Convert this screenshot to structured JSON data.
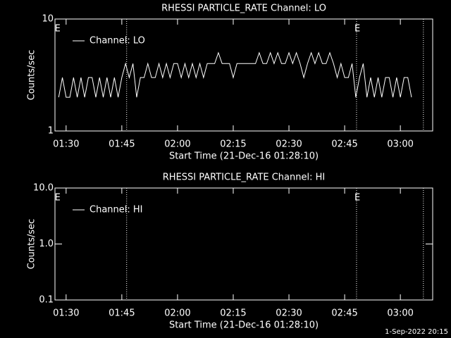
{
  "chart_data": [
    {
      "type": "line",
      "title": "RHESSI PARTICLE_RATE Channel: LO",
      "xlabel": "Start Time (21-Dec-16 01:28:10)",
      "ylabel": "Counts/sec",
      "log_y": true,
      "color": "#ffffff",
      "legend": "upper left",
      "xlim": [
        87,
        188.7
      ],
      "ylim": [
        1,
        10
      ],
      "xticks": [
        {
          "value": 90,
          "label": "01:30"
        },
        {
          "value": 105,
          "label": "01:45"
        },
        {
          "value": 120,
          "label": "02:00"
        },
        {
          "value": 135,
          "label": "02:15"
        },
        {
          "value": 150,
          "label": "02:30"
        },
        {
          "value": 165,
          "label": "02:45"
        },
        {
          "value": 180,
          "label": "03:00"
        }
      ],
      "yticks": [
        1,
        10
      ],
      "vlines": [
        106.3,
        168.2,
        186.2
      ],
      "flags": [
        {
          "x": 87.5,
          "label": "E"
        },
        {
          "x": 168.2,
          "label": "E"
        }
      ],
      "x": [
        88,
        89,
        90,
        91,
        92,
        93,
        94,
        95,
        96,
        97,
        98,
        99,
        100,
        101,
        102,
        103,
        104,
        105,
        106,
        107,
        108,
        109,
        110,
        111,
        112,
        113,
        114,
        115,
        116,
        117,
        118,
        119,
        120,
        121,
        122,
        123,
        124,
        125,
        126,
        127,
        128,
        129,
        130,
        131,
        132,
        133,
        134,
        135,
        136,
        137,
        138,
        139,
        140,
        141,
        142,
        143,
        144,
        145,
        146,
        147,
        148,
        149,
        150,
        151,
        152,
        153,
        154,
        155,
        156,
        157,
        158,
        159,
        160,
        161,
        162,
        163,
        164,
        165,
        166,
        167,
        168,
        169,
        170,
        171,
        172,
        173,
        174,
        175,
        176,
        177,
        178,
        179,
        180,
        181,
        182,
        183
      ],
      "series": [
        {
          "name": "Channel: LO",
          "color": "#ffffff",
          "values": [
            2,
            3,
            2,
            2,
            3,
            2,
            3,
            2,
            3,
            3,
            2,
            3,
            2,
            3,
            2,
            3,
            2,
            3,
            4,
            3,
            4,
            2,
            3,
            3,
            4,
            3,
            3,
            4,
            3,
            4,
            3,
            4,
            4,
            3,
            4,
            3,
            4,
            3,
            4,
            3,
            4,
            4,
            4,
            5,
            4,
            4,
            4,
            3,
            4,
            4,
            4,
            4,
            4,
            4,
            5,
            4,
            4,
            5,
            4,
            5,
            4,
            4,
            5,
            4,
            5,
            4,
            3,
            4,
            5,
            4,
            5,
            4,
            4,
            5,
            4,
            3,
            4,
            3,
            3,
            4,
            2,
            3,
            4,
            2,
            3,
            2,
            3,
            2,
            3,
            3,
            2,
            3,
            2,
            3,
            3,
            2
          ]
        }
      ]
    },
    {
      "type": "line",
      "title": "RHESSI PARTICLE_RATE Channel: HI",
      "xlabel": "Start Time (21-Dec-16 01:28:10)",
      "ylabel": "Counts/sec",
      "log_y": true,
      "color": "#ffffff",
      "legend": "upper left",
      "xlim": [
        87,
        188.7
      ],
      "ylim": [
        0.1,
        10
      ],
      "xticks": [
        {
          "value": 90,
          "label": "01:30"
        },
        {
          "value": 105,
          "label": "01:45"
        },
        {
          "value": 120,
          "label": "02:00"
        },
        {
          "value": 135,
          "label": "02:15"
        },
        {
          "value": 150,
          "label": "02:30"
        },
        {
          "value": 165,
          "label": "02:45"
        },
        {
          "value": 180,
          "label": "03:00"
        }
      ],
      "yticks": [
        0.1,
        {
          "value": 1,
          "label": "1.0"
        },
        {
          "value": 10,
          "label": "10.0"
        }
      ],
      "vlines": [
        106.3,
        168.2,
        186.2
      ],
      "flags": [
        {
          "x": 87.5,
          "label": "E"
        },
        {
          "x": 168.2,
          "label": "E"
        }
      ],
      "x": [],
      "series": [
        {
          "name": "Channel: HI",
          "color": "#ffffff",
          "values": []
        }
      ]
    }
  ],
  "footer": "1-Sep-2022 20:15"
}
